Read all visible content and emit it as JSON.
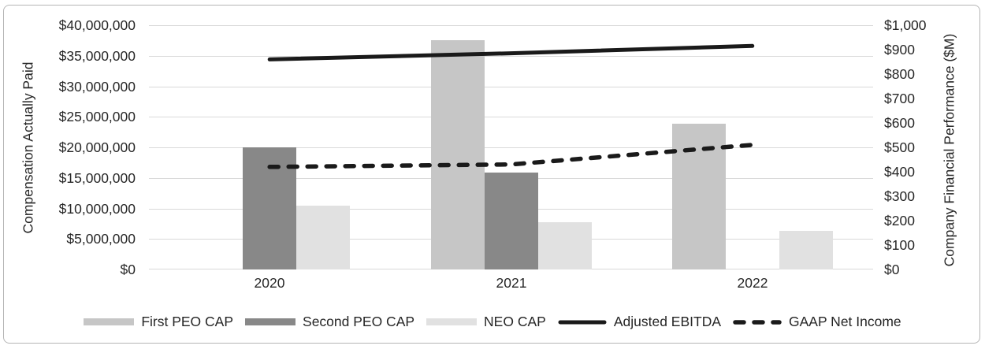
{
  "chart_data": {
    "type": "bar+line combo",
    "categories": [
      "2020",
      "2021",
      "2022"
    ],
    "left_axis": {
      "title": "Compensation Actually Paid",
      "min": 0,
      "max": 40000000,
      "step": 5000000,
      "tick_values": [
        0,
        5000000,
        10000000,
        15000000,
        20000000,
        25000000,
        30000000,
        35000000,
        40000000
      ],
      "tick_labels": [
        "$0",
        "$5,000,000",
        "$10,000,000",
        "$15,000,000",
        "$20,000,000",
        "$25,000,000",
        "$30,000,000",
        "$35,000,000",
        "$40,000,000"
      ]
    },
    "right_axis": {
      "title": "Company Financial Performance ($M)",
      "min": 0,
      "max": 1000,
      "step": 100,
      "tick_values": [
        0,
        100,
        200,
        300,
        400,
        500,
        600,
        700,
        800,
        900,
        1000
      ],
      "tick_labels": [
        "$0",
        "$100",
        "$200",
        "$300",
        "$400",
        "$500",
        "$600",
        "$700",
        "$800",
        "$900",
        "$1,000"
      ]
    },
    "bar_series": [
      {
        "name": "First PEO CAP",
        "color": "#c6c6c6",
        "axis": "left",
        "values": [
          null,
          37500000,
          23900000
        ]
      },
      {
        "name": "Second PEO CAP",
        "color": "#888888",
        "axis": "left",
        "values": [
          20000000,
          15900000,
          null
        ]
      },
      {
        "name": "NEO CAP",
        "color": "#e1e1e1",
        "axis": "left",
        "values": [
          10500000,
          7700000,
          6300000
        ]
      }
    ],
    "line_series": [
      {
        "name": "Adjusted EBITDA",
        "color": "#1a1a1a",
        "style": "solid",
        "axis": "right",
        "values": [
          860,
          885,
          915
        ]
      },
      {
        "name": "GAAP Net Income",
        "color": "#1a1a1a",
        "style": "dashed",
        "axis": "right",
        "values": [
          420,
          430,
          510
        ]
      }
    ],
    "grid": true,
    "legend_position": "bottom",
    "legend_labels": [
      "First PEO CAP",
      "Second PEO CAP",
      "NEO CAP",
      "Adjusted EBITDA",
      "GAAP Net Income"
    ]
  },
  "colors": {
    "gridline": "#d9d9d9",
    "text": "#262626",
    "card_border": "#b5b5b5",
    "background": "#ffffff"
  }
}
